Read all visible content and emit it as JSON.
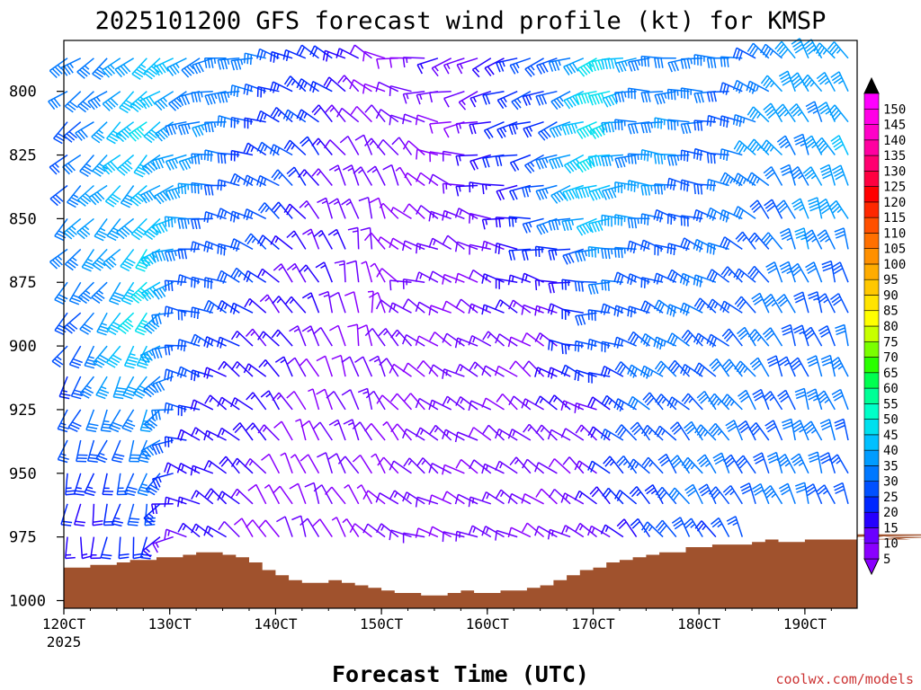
{
  "chart_data": {
    "type": "wind-barb-profile",
    "title": "2025101200 GFS forecast wind profile (kt) for KMSP",
    "xlabel": "Forecast Time (UTC)",
    "ylabel": "",
    "credit": "coolwx.com/models",
    "year_label": "2025",
    "units": "kt",
    "x_ticks": [
      "120CT",
      "130CT",
      "140CT",
      "150CT",
      "160CT",
      "170CT",
      "180CT",
      "190CT"
    ],
    "x_tick_days": [
      12,
      13,
      14,
      15,
      16,
      17,
      18,
      19
    ],
    "x_range_days": [
      12.0,
      19.5
    ],
    "time_step_hours": 3,
    "y_ticks": [
      800,
      825,
      850,
      875,
      900,
      925,
      950,
      975,
      1000
    ],
    "y_range_hpa": [
      780,
      1003
    ],
    "levels_hpa": [
      787,
      800,
      812,
      825,
      837,
      850,
      862,
      875,
      887,
      900,
      912,
      925,
      937,
      950,
      962,
      975
    ],
    "colorbar": {
      "labels": [
        5,
        10,
        15,
        20,
        25,
        30,
        35,
        40,
        45,
        50,
        55,
        60,
        65,
        70,
        75,
        80,
        85,
        90,
        95,
        100,
        105,
        110,
        115,
        120,
        125,
        130,
        135,
        140,
        145,
        150
      ],
      "colors": [
        "#8a00ff",
        "#6a00ff",
        "#2600ff",
        "#0026ff",
        "#0050ff",
        "#0078ff",
        "#009cff",
        "#00c0ff",
        "#00e0ee",
        "#00ffc8",
        "#00ff96",
        "#00ff50",
        "#2aff00",
        "#7aff00",
        "#c8ff00",
        "#ffff00",
        "#ffe400",
        "#ffc800",
        "#ffac00",
        "#ff9000",
        "#ff7000",
        "#ff5000",
        "#ff2800",
        "#ff0000",
        "#ff0040",
        "#ff0070",
        "#ff00a0",
        "#ff00c8",
        "#ff00e6",
        "#ff00ff"
      ]
    },
    "surface_pressure_hpa": [
      987,
      987,
      986,
      986,
      985,
      984,
      984,
      983,
      983,
      982,
      981,
      981,
      982,
      983,
      985,
      988,
      990,
      992,
      993,
      993,
      992,
      993,
      994,
      995,
      996,
      997,
      997,
      998,
      998,
      997,
      996,
      997,
      997,
      996,
      996,
      995,
      994,
      992,
      990,
      988,
      987,
      985,
      984,
      983,
      982,
      981,
      981,
      979,
      979,
      978,
      978,
      978,
      977,
      976,
      977,
      977,
      976,
      976,
      976,
      976,
      975,
      975,
      975,
      974,
      976,
      976,
      976,
      975,
      975,
      974
    ],
    "wind_keyframes": [
      {
        "t": 0.0,
        "spd": [
          30,
          30,
          30,
          30,
          30,
          30,
          30,
          30,
          30,
          28,
          26,
          25,
          24,
          22,
          20,
          18
        ],
        "dir": [
          235,
          235,
          230,
          230,
          230,
          225,
          225,
          220,
          220,
          215,
          210,
          205,
          200,
          195,
          190,
          185
        ]
      },
      {
        "t": 0.1,
        "spd": [
          42,
          42,
          44,
          44,
          44,
          44,
          45,
          45,
          45,
          45,
          42,
          38,
          34,
          30,
          26,
          20
        ],
        "dir": [
          230,
          230,
          228,
          226,
          224,
          222,
          220,
          218,
          216,
          212,
          208,
          205,
          202,
          198,
          195,
          190
        ]
      },
      {
        "t": 0.15,
        "spd": [
          38,
          36,
          36,
          35,
          35,
          34,
          33,
          32,
          30,
          28,
          26,
          24,
          22,
          20,
          18,
          16
        ],
        "dir": [
          240,
          245,
          250,
          255,
          260,
          265,
          270,
          275,
          280,
          282,
          284,
          286,
          288,
          290,
          292,
          295
        ]
      },
      {
        "t": 0.3,
        "spd": [
          25,
          24,
          23,
          22,
          21,
          20,
          18,
          16,
          14,
          12,
          11,
          10,
          10,
          9,
          8,
          8
        ],
        "dir": [
          300,
          305,
          310,
          315,
          320,
          322,
          324,
          326,
          328,
          330,
          332,
          334,
          336,
          338,
          340,
          340
        ]
      },
      {
        "t": 0.38,
        "spd": [
          12,
          12,
          12,
          11,
          11,
          10,
          10,
          10,
          10,
          10,
          10,
          10,
          10,
          10,
          10,
          10
        ],
        "dir": [
          300,
          310,
          320,
          330,
          340,
          350,
          355,
          0,
          0,
          350,
          345,
          340,
          335,
          330,
          325,
          320
        ]
      },
      {
        "t": 0.43,
        "spd": [
          10,
          10,
          9,
          9,
          9,
          9,
          10,
          10,
          10,
          11,
          11,
          11,
          10,
          10,
          10,
          10
        ],
        "dir": [
          270,
          280,
          300,
          320,
          330,
          310,
          290,
          280,
          300,
          310,
          315,
          315,
          315,
          315,
          300,
          290
        ]
      },
      {
        "t": 0.5,
        "spd": [
          14,
          13,
          12,
          12,
          12,
          12,
          12,
          12,
          12,
          12,
          12,
          12,
          12,
          12,
          12,
          12
        ],
        "dir": [
          245,
          250,
          260,
          270,
          280,
          295,
          300,
          300,
          300,
          300,
          300,
          300,
          300,
          300,
          295,
          290
        ]
      },
      {
        "t": 0.6,
        "spd": [
          25,
          26,
          27,
          27,
          26,
          24,
          20,
          16,
          14,
          12,
          12,
          12,
          12,
          12,
          12,
          12
        ],
        "dir": [
          250,
          250,
          250,
          250,
          255,
          260,
          270,
          285,
          300,
          305,
          310,
          310,
          310,
          310,
          305,
          300
        ]
      },
      {
        "t": 0.67,
        "spd": [
          48,
          48,
          48,
          48,
          48,
          45,
          35,
          28,
          26,
          25,
          22,
          18,
          15,
          14,
          13,
          12
        ],
        "dir": [
          250,
          250,
          250,
          250,
          250,
          255,
          260,
          265,
          270,
          275,
          285,
          295,
          305,
          310,
          310,
          300
        ]
      },
      {
        "t": 0.72,
        "spd": [
          35,
          35,
          35,
          35,
          34,
          32,
          30,
          28,
          28,
          30,
          30,
          28,
          28,
          28,
          25,
          22
        ],
        "dir": [
          265,
          268,
          270,
          272,
          275,
          280,
          285,
          290,
          295,
          300,
          305,
          310,
          315,
          318,
          320,
          320
        ]
      },
      {
        "t": 0.83,
        "spd": [
          30,
          30,
          30,
          30,
          30,
          28,
          28,
          28,
          30,
          30,
          30,
          30,
          32,
          32,
          30,
          28
        ],
        "dir": [
          270,
          272,
          275,
          280,
          285,
          290,
          295,
          300,
          305,
          310,
          315,
          320,
          325,
          330,
          330,
          330
        ]
      },
      {
        "t": 0.92,
        "spd": [
          36,
          36,
          36,
          36,
          35,
          34,
          32,
          30,
          30,
          30,
          30,
          30,
          30,
          30,
          30,
          28
        ],
        "dir": [
          330,
          332,
          334,
          336,
          338,
          340,
          340,
          340,
          340,
          340,
          340,
          340,
          340,
          340,
          340,
          340
        ]
      },
      {
        "t": 1.0,
        "spd": [
          40,
          40,
          40,
          40,
          38,
          36,
          34,
          32,
          30,
          30,
          30,
          30,
          30,
          30,
          30,
          30
        ],
        "dir": [
          320,
          325,
          330,
          330,
          335,
          335,
          340,
          340,
          340,
          340,
          340,
          340,
          340,
          340,
          340,
          340
        ]
      }
    ]
  }
}
